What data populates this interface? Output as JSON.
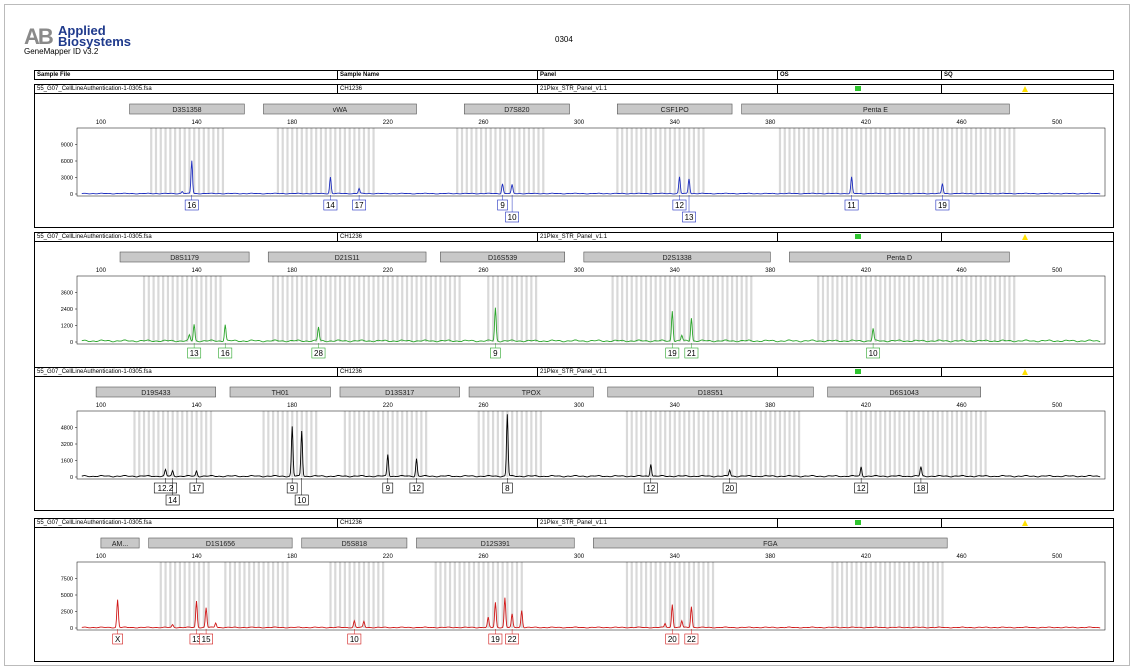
{
  "header": {
    "brand_mark": "AB",
    "brand_line1": "Applied",
    "brand_line2": "Biosystems",
    "software": "GeneMapper ID v3.2",
    "page_title": "0304"
  },
  "columns": {
    "sample_file": "Sample File",
    "sample_name": "Sample Name",
    "panel": "Panel",
    "os": "OS",
    "sq": "SQ"
  },
  "colors": {
    "blue": "#1f2fbf",
    "green": "#2aa52a",
    "black": "#000000",
    "red": "#d01818",
    "bin": "#d9d9d9",
    "marker": "#c8c8c8",
    "os_ok": "#2fc52f",
    "sq_warn": "#ffe000"
  },
  "chart_data": [
    {
      "type": "line",
      "dye": "blue",
      "sample_file": "55_G07_CellLineAuthentication-1-0305.fsa",
      "sample_name": "CH1236",
      "panel": "21Plex_STR_Panel_v1.1",
      "xlim": [
        90,
        520
      ],
      "x_ticks": [
        100,
        140,
        180,
        220,
        260,
        300,
        340,
        380,
        420,
        460,
        500
      ],
      "ylim": [
        0,
        12000
      ],
      "y_ticks": [
        0,
        3000,
        6000,
        9000
      ],
      "markers": [
        {
          "name": "D3S1358",
          "start": 112,
          "end": 160
        },
        {
          "name": "vWA",
          "start": 168,
          "end": 232
        },
        {
          "name": "D7S820",
          "start": 252,
          "end": 296
        },
        {
          "name": "CSF1PO",
          "start": 316,
          "end": 364
        },
        {
          "name": "Penta E",
          "start": 368,
          "end": 480
        }
      ],
      "bin_ranges": [
        [
          121,
          151
        ],
        [
          174,
          214
        ],
        [
          249,
          285
        ],
        [
          316,
          352
        ],
        [
          384,
          482
        ]
      ],
      "peaks": [
        {
          "x": 138,
          "height": 6000,
          "label": "16",
          "row": 0
        },
        {
          "x": 134,
          "height": 400,
          "label": "",
          "row": 0
        },
        {
          "x": 196,
          "height": 3000,
          "label": "14",
          "row": 0
        },
        {
          "x": 208,
          "height": 900,
          "label": "17",
          "row": 0
        },
        {
          "x": 268,
          "height": 1800,
          "label": "9",
          "row": 0
        },
        {
          "x": 272,
          "height": 1600,
          "label": "10",
          "row": 1
        },
        {
          "x": 342,
          "height": 3000,
          "label": "12",
          "row": 0
        },
        {
          "x": 346,
          "height": 2700,
          "label": "13",
          "row": 1
        },
        {
          "x": 414,
          "height": 3000,
          "label": "11",
          "row": 0
        },
        {
          "x": 452,
          "height": 1800,
          "label": "19",
          "row": 0
        }
      ]
    },
    {
      "type": "line",
      "dye": "green",
      "sample_file": "55_G07_CellLineAuthentication-1-0305.fsa",
      "sample_name": "CH1236",
      "panel": "21Plex_STR_Panel_v1.1",
      "xlim": [
        90,
        520
      ],
      "x_ticks": [
        100,
        140,
        180,
        220,
        260,
        300,
        340,
        380,
        420,
        460,
        500
      ],
      "ylim": [
        0,
        4800
      ],
      "y_ticks": [
        0,
        1200,
        2400,
        3600
      ],
      "markers": [
        {
          "name": "D8S1179",
          "start": 108,
          "end": 162
        },
        {
          "name": "D21S11",
          "start": 170,
          "end": 236
        },
        {
          "name": "D16S539",
          "start": 242,
          "end": 294
        },
        {
          "name": "D2S1338",
          "start": 302,
          "end": 380
        },
        {
          "name": "Penta D",
          "start": 388,
          "end": 480
        }
      ],
      "bin_ranges": [
        [
          118,
          150
        ],
        [
          172,
          250
        ],
        [
          262,
          282
        ],
        [
          314,
          372
        ],
        [
          400,
          482
        ]
      ],
      "peaks": [
        {
          "x": 137,
          "height": 400,
          "label": "",
          "row": 0
        },
        {
          "x": 139,
          "height": 1200,
          "label": "13",
          "row": 0
        },
        {
          "x": 152,
          "height": 1200,
          "label": "16",
          "row": 0
        },
        {
          "x": 191,
          "height": 1000,
          "label": "28",
          "row": 0
        },
        {
          "x": 265,
          "height": 2400,
          "label": "9",
          "row": 0
        },
        {
          "x": 339,
          "height": 2200,
          "label": "19",
          "row": 0
        },
        {
          "x": 343,
          "height": 400,
          "label": "",
          "row": 0
        },
        {
          "x": 347,
          "height": 1700,
          "label": "21",
          "row": 0
        },
        {
          "x": 423,
          "height": 900,
          "label": "10",
          "row": 0
        }
      ]
    },
    {
      "type": "line",
      "dye": "black",
      "sample_file": "55_G07_CellLineAuthentication-1-0305.fsa",
      "sample_name": "CH1236",
      "panel": "21Plex_STR_Panel_v1.1",
      "xlim": [
        90,
        520
      ],
      "x_ticks": [
        100,
        140,
        180,
        220,
        260,
        300,
        340,
        380,
        420,
        460,
        500
      ],
      "ylim": [
        0,
        6400
      ],
      "y_ticks": [
        0,
        1600,
        3200,
        4800
      ],
      "markers": [
        {
          "name": "D19S433",
          "start": 98,
          "end": 148
        },
        {
          "name": "TH01",
          "start": 154,
          "end": 196
        },
        {
          "name": "D13S317",
          "start": 200,
          "end": 250
        },
        {
          "name": "TPOX",
          "start": 254,
          "end": 306
        },
        {
          "name": "D18S51",
          "start": 312,
          "end": 398
        },
        {
          "name": "D6S1043",
          "start": 404,
          "end": 468
        }
      ],
      "bin_ranges": [
        [
          114,
          146
        ],
        [
          168,
          190
        ],
        [
          202,
          236
        ],
        [
          258,
          284
        ],
        [
          320,
          392
        ],
        [
          412,
          470
        ]
      ],
      "peaks": [
        {
          "x": 127,
          "height": 600,
          "label": "12.2",
          "row": 0
        },
        {
          "x": 130,
          "height": 500,
          "label": "14",
          "row": 1
        },
        {
          "x": 140,
          "height": 500,
          "label": "17",
          "row": 0
        },
        {
          "x": 180,
          "height": 4800,
          "label": "9",
          "row": 0
        },
        {
          "x": 184,
          "height": 4400,
          "label": "10",
          "row": 1
        },
        {
          "x": 220,
          "height": 2100,
          "label": "9",
          "row": 0
        },
        {
          "x": 232,
          "height": 1700,
          "label": "12",
          "row": 0
        },
        {
          "x": 270,
          "height": 6000,
          "label": "8",
          "row": 0
        },
        {
          "x": 330,
          "height": 1200,
          "label": "12",
          "row": 0
        },
        {
          "x": 363,
          "height": 600,
          "label": "20",
          "row": 0
        },
        {
          "x": 418,
          "height": 900,
          "label": "12",
          "row": 0
        },
        {
          "x": 443,
          "height": 900,
          "label": "18",
          "row": 0
        }
      ]
    },
    {
      "type": "line",
      "dye": "red",
      "sample_file": "55_G07_CellLineAuthentication-1-0305.fsa",
      "sample_name": "CH1236",
      "panel": "21Plex_STR_Panel_v1.1",
      "xlim": [
        90,
        520
      ],
      "x_ticks": [
        100,
        140,
        180,
        220,
        260,
        300,
        340,
        380,
        420,
        460,
        500
      ],
      "ylim": [
        0,
        10000
      ],
      "y_ticks": [
        0,
        2500,
        5000,
        7500
      ],
      "markers": [
        {
          "name": "AM...",
          "start": 100,
          "end": 116
        },
        {
          "name": "D1S1656",
          "start": 120,
          "end": 180
        },
        {
          "name": "D5S818",
          "start": 184,
          "end": 228
        },
        {
          "name": "D12S391",
          "start": 232,
          "end": 298
        },
        {
          "name": "FGA",
          "start": 306,
          "end": 454
        }
      ],
      "bin_ranges": [
        [
          125,
          146
        ],
        [
          152,
          178
        ],
        [
          196,
          218
        ],
        [
          240,
          276
        ],
        [
          320,
          356
        ],
        [
          406,
          452
        ]
      ],
      "peaks": [
        {
          "x": 107,
          "height": 4200,
          "label": "X",
          "row": 0
        },
        {
          "x": 130,
          "height": 400,
          "label": "",
          "row": 0
        },
        {
          "x": 140,
          "height": 4000,
          "label": "13",
          "row": 0
        },
        {
          "x": 144,
          "height": 3000,
          "label": "15",
          "row": 0
        },
        {
          "x": 148,
          "height": 700,
          "label": "",
          "row": 0
        },
        {
          "x": 206,
          "height": 1000,
          "label": "10",
          "row": 0
        },
        {
          "x": 210,
          "height": 900,
          "label": "",
          "row": 0
        },
        {
          "x": 262,
          "height": 1500,
          "label": "",
          "row": 0
        },
        {
          "x": 265,
          "height": 3800,
          "label": "19",
          "row": 0
        },
        {
          "x": 269,
          "height": 4500,
          "label": "",
          "row": 0
        },
        {
          "x": 272,
          "height": 2000,
          "label": "22",
          "row": 0
        },
        {
          "x": 276,
          "height": 2600,
          "label": "",
          "row": 0
        },
        {
          "x": 336,
          "height": 600,
          "label": "",
          "row": 0
        },
        {
          "x": 339,
          "height": 3500,
          "label": "20",
          "row": 0
        },
        {
          "x": 343,
          "height": 1000,
          "label": "",
          "row": 0
        },
        {
          "x": 347,
          "height": 3200,
          "label": "22",
          "row": 0
        }
      ]
    }
  ]
}
